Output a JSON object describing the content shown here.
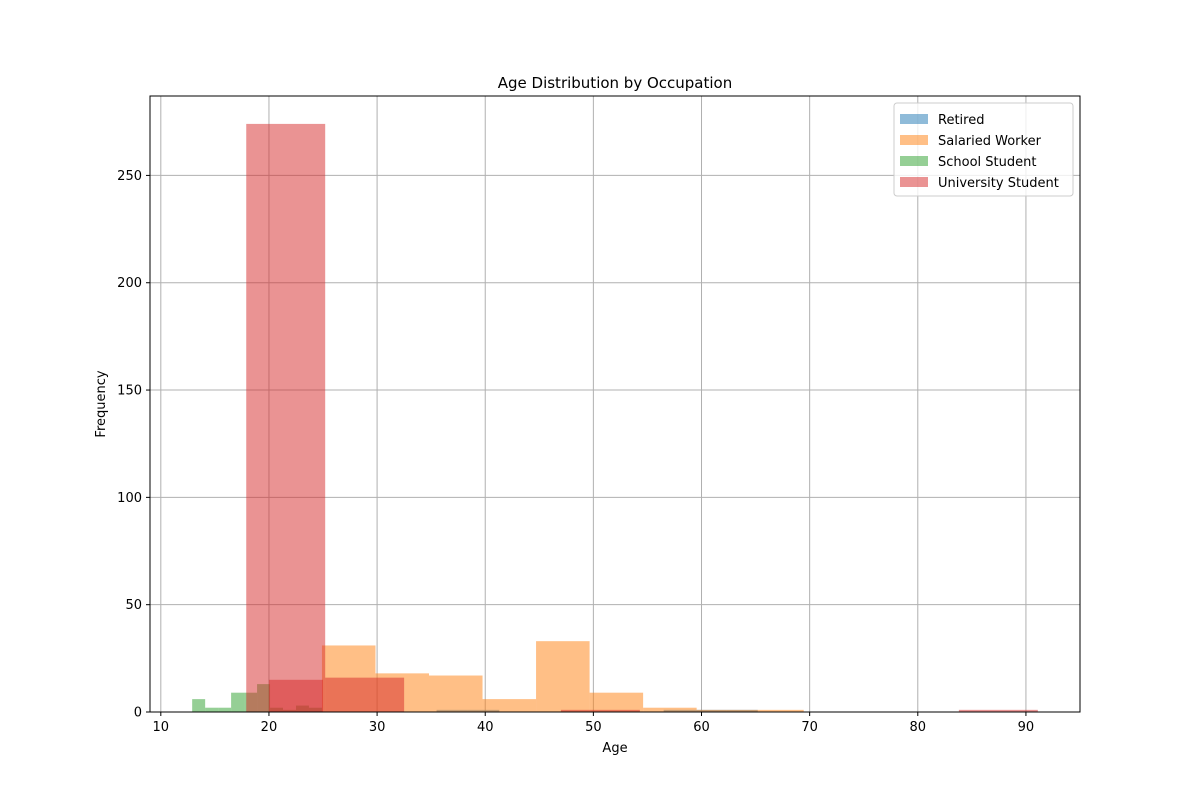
{
  "chart_data": {
    "type": "histogram",
    "title": "Age Distribution by Occupation",
    "xlabel": "Age",
    "ylabel": "Frequency",
    "xlim": [
      9,
      95
    ],
    "ylim": [
      0,
      287
    ],
    "xticks": [
      10,
      20,
      30,
      40,
      50,
      60,
      70,
      80,
      90
    ],
    "yticks": [
      0,
      50,
      100,
      150,
      200,
      250
    ],
    "grid": true,
    "legend_position": "top-right",
    "series": [
      {
        "name": "Retired",
        "color": "#1f77b4",
        "opacity": 0.5,
        "bins": [
          {
            "x0": 35.5,
            "x1": 38.4,
            "count": 1
          },
          {
            "x0": 38.4,
            "x1": 41.3,
            "count": 1
          },
          {
            "x0": 56.5,
            "x1": 59.4,
            "count": 1
          },
          {
            "x0": 59.4,
            "x1": 62.3,
            "count": 1
          },
          {
            "x0": 62.3,
            "x1": 65.2,
            "count": 1
          }
        ]
      },
      {
        "name": "Salaried Worker",
        "color": "#ff7f0e",
        "opacity": 0.5,
        "bins": [
          {
            "x0": 24.9,
            "x1": 29.85,
            "count": 31
          },
          {
            "x0": 29.85,
            "x1": 34.8,
            "count": 18
          },
          {
            "x0": 34.8,
            "x1": 39.75,
            "count": 17
          },
          {
            "x0": 39.75,
            "x1": 44.7,
            "count": 6
          },
          {
            "x0": 44.7,
            "x1": 49.65,
            "count": 33
          },
          {
            "x0": 49.65,
            "x1": 54.6,
            "count": 9
          },
          {
            "x0": 54.6,
            "x1": 59.55,
            "count": 2
          },
          {
            "x0": 59.55,
            "x1": 64.5,
            "count": 1
          },
          {
            "x0": 64.5,
            "x1": 69.45,
            "count": 1
          }
        ]
      },
      {
        "name": "School Student",
        "color": "#2ca02c",
        "opacity": 0.5,
        "bins": [
          {
            "x0": 12.9,
            "x1": 14.1,
            "count": 6
          },
          {
            "x0": 14.1,
            "x1": 15.3,
            "count": 2
          },
          {
            "x0": 15.3,
            "x1": 16.5,
            "count": 2
          },
          {
            "x0": 16.5,
            "x1": 17.7,
            "count": 9
          },
          {
            "x0": 17.7,
            "x1": 18.9,
            "count": 9
          },
          {
            "x0": 18.9,
            "x1": 20.1,
            "count": 13
          },
          {
            "x0": 20.1,
            "x1": 21.3,
            "count": 2
          },
          {
            "x0": 21.3,
            "x1": 22.5,
            "count": 1
          },
          {
            "x0": 22.5,
            "x1": 23.7,
            "count": 3
          },
          {
            "x0": 23.7,
            "x1": 24.9,
            "count": 2
          }
        ]
      },
      {
        "name": "University Student",
        "color": "#d62728",
        "opacity": 0.5,
        "bins": [
          {
            "x0": 17.9,
            "x1": 25.2,
            "count": 274
          },
          {
            "x0": 25.2,
            "x1": 32.5,
            "count": 16
          },
          {
            "x0": 47.0,
            "x1": 54.3,
            "count": 1
          },
          {
            "x0": 83.8,
            "x1": 91.1,
            "count": 1
          }
        ]
      },
      {
        "name": "",
        "color": "#d62728",
        "opacity": 0.5,
        "bins": [
          {
            "x0": 20.0,
            "x1": 25.0,
            "count": 15
          }
        ]
      }
    ]
  }
}
